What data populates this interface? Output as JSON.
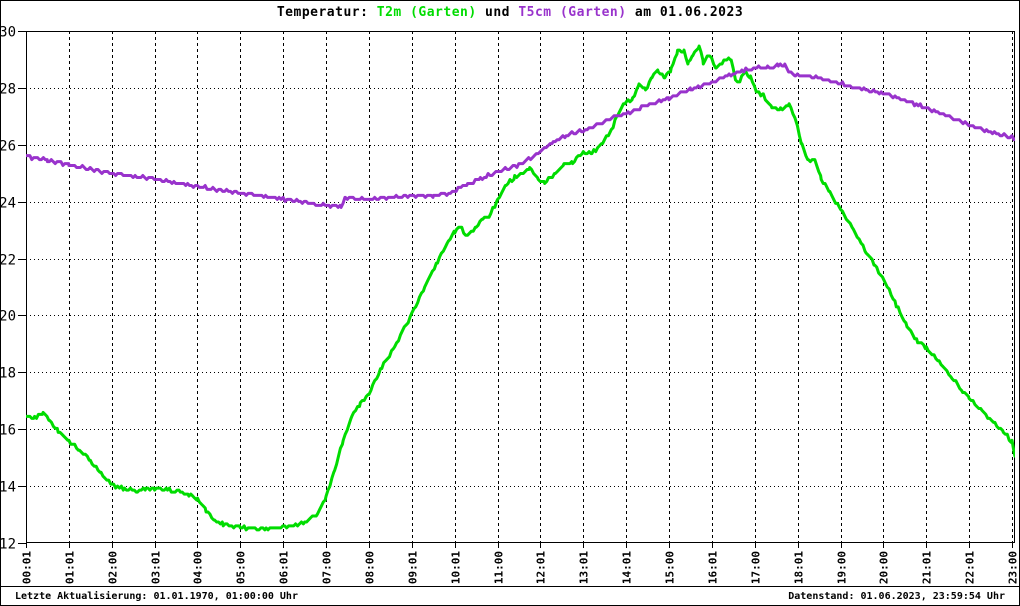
{
  "title": {
    "prefix": "Temperatur: ",
    "series1_label": "T2m (Garten)",
    "connector": " und ",
    "series2_label": "T5cm (Garten)",
    "suffix": " am 01.06.2023"
  },
  "statusbar": {
    "left": "Letzte Aktualisierung: 01.01.1970, 01:00:00 Uhr",
    "right": "Datenstand: 01.06.2023, 23:59:54 Uhr"
  },
  "colors": {
    "t2m": "#00DC00",
    "t5cm": "#9933CC",
    "grid": "#000000",
    "background": "#FFFFFF",
    "text": "#000000"
  },
  "chart_data": {
    "type": "line",
    "title": "Temperatur: T2m (Garten) und T5cm (Garten) am 01.06.2023",
    "xlabel": "",
    "ylabel": "",
    "x_unit": "hour_of_day",
    "y_unit": "degC",
    "ylim": [
      12,
      30
    ],
    "xlim_hours": [
      0,
      23.07
    ],
    "y_ticks": [
      12,
      14,
      16,
      18,
      20,
      22,
      24,
      26,
      28,
      30
    ],
    "x_tick_labels": [
      "00:01",
      "01:01",
      "02:00",
      "03:01",
      "04:00",
      "05:00",
      "06:01",
      "07:00",
      "08:00",
      "09:01",
      "10:01",
      "11:00",
      "12:01",
      "13:01",
      "14:01",
      "15:00",
      "16:01",
      "17:00",
      "18:01",
      "19:00",
      "20:00",
      "21:01",
      "22:01",
      "23:00"
    ],
    "grid": true,
    "legend_position": "in-title",
    "series": [
      {
        "name": "T2m (Garten)",
        "color": "#00DC00",
        "points": [
          [
            0.0,
            16.45
          ],
          [
            0.2,
            16.4
          ],
          [
            0.4,
            16.55
          ],
          [
            0.55,
            16.3
          ],
          [
            0.75,
            15.95
          ],
          [
            1.0,
            15.6
          ],
          [
            1.25,
            15.25
          ],
          [
            1.5,
            14.9
          ],
          [
            1.75,
            14.45
          ],
          [
            2.0,
            14.05
          ],
          [
            2.3,
            13.9
          ],
          [
            2.6,
            13.85
          ],
          [
            2.8,
            13.9
          ],
          [
            3.0,
            13.9
          ],
          [
            3.3,
            13.85
          ],
          [
            3.6,
            13.8
          ],
          [
            3.8,
            13.7
          ],
          [
            4.0,
            13.55
          ],
          [
            4.2,
            13.15
          ],
          [
            4.4,
            12.8
          ],
          [
            4.6,
            12.65
          ],
          [
            4.8,
            12.6
          ],
          [
            5.0,
            12.55
          ],
          [
            5.3,
            12.5
          ],
          [
            5.6,
            12.5
          ],
          [
            5.9,
            12.55
          ],
          [
            6.2,
            12.6
          ],
          [
            6.5,
            12.7
          ],
          [
            6.8,
            13.05
          ],
          [
            7.0,
            13.6
          ],
          [
            7.2,
            14.6
          ],
          [
            7.4,
            15.6
          ],
          [
            7.6,
            16.5
          ],
          [
            7.8,
            16.9
          ],
          [
            8.0,
            17.25
          ],
          [
            8.3,
            18.2
          ],
          [
            8.6,
            18.9
          ],
          [
            9.0,
            20.05
          ],
          [
            9.3,
            21.0
          ],
          [
            9.6,
            21.9
          ],
          [
            9.85,
            22.6
          ],
          [
            10.0,
            22.95
          ],
          [
            10.12,
            23.1
          ],
          [
            10.3,
            22.8
          ],
          [
            10.5,
            23.1
          ],
          [
            10.65,
            23.4
          ],
          [
            10.8,
            23.45
          ],
          [
            11.0,
            24.05
          ],
          [
            11.2,
            24.6
          ],
          [
            11.4,
            24.85
          ],
          [
            11.6,
            25.0
          ],
          [
            11.75,
            25.2
          ],
          [
            11.95,
            24.8
          ],
          [
            12.1,
            24.65
          ],
          [
            12.35,
            25.0
          ],
          [
            12.55,
            25.3
          ],
          [
            12.75,
            25.4
          ],
          [
            13.0,
            25.75
          ],
          [
            13.2,
            25.7
          ],
          [
            13.45,
            26.05
          ],
          [
            13.65,
            26.5
          ],
          [
            13.8,
            27.1
          ],
          [
            14.0,
            27.5
          ],
          [
            14.15,
            27.6
          ],
          [
            14.3,
            28.15
          ],
          [
            14.45,
            27.95
          ],
          [
            14.6,
            28.4
          ],
          [
            14.75,
            28.6
          ],
          [
            14.9,
            28.35
          ],
          [
            15.05,
            28.65
          ],
          [
            15.2,
            29.3
          ],
          [
            15.35,
            29.3
          ],
          [
            15.45,
            28.85
          ],
          [
            15.55,
            29.15
          ],
          [
            15.7,
            29.45
          ],
          [
            15.8,
            28.9
          ],
          [
            15.95,
            29.15
          ],
          [
            16.1,
            28.65
          ],
          [
            16.3,
            29.0
          ],
          [
            16.45,
            29.0
          ],
          [
            16.55,
            28.3
          ],
          [
            16.65,
            28.2
          ],
          [
            16.75,
            28.6
          ],
          [
            16.9,
            28.35
          ],
          [
            17.05,
            27.85
          ],
          [
            17.2,
            27.75
          ],
          [
            17.4,
            27.3
          ],
          [
            17.6,
            27.25
          ],
          [
            17.8,
            27.4
          ],
          [
            17.95,
            26.9
          ],
          [
            18.1,
            26.0
          ],
          [
            18.25,
            25.45
          ],
          [
            18.4,
            25.5
          ],
          [
            18.55,
            24.8
          ],
          [
            18.75,
            24.3
          ],
          [
            19.0,
            23.75
          ],
          [
            19.3,
            23.0
          ],
          [
            19.6,
            22.25
          ],
          [
            19.8,
            21.75
          ],
          [
            20.0,
            21.3
          ],
          [
            20.3,
            20.35
          ],
          [
            20.55,
            19.65
          ],
          [
            20.8,
            19.1
          ],
          [
            21.0,
            18.85
          ],
          [
            21.3,
            18.4
          ],
          [
            21.6,
            17.8
          ],
          [
            21.85,
            17.35
          ],
          [
            22.0,
            17.1
          ],
          [
            22.3,
            16.65
          ],
          [
            22.6,
            16.2
          ],
          [
            22.8,
            15.9
          ],
          [
            23.0,
            15.55
          ],
          [
            23.04,
            15.3
          ],
          [
            23.07,
            15.05
          ]
        ]
      },
      {
        "name": "T5cm (Garten)",
        "color": "#9933CC",
        "points": [
          [
            0.0,
            25.6
          ],
          [
            0.5,
            25.45
          ],
          [
            1.0,
            25.3
          ],
          [
            1.5,
            25.15
          ],
          [
            2.0,
            25.0
          ],
          [
            2.5,
            24.9
          ],
          [
            3.0,
            24.8
          ],
          [
            3.5,
            24.65
          ],
          [
            4.0,
            24.55
          ],
          [
            4.5,
            24.4
          ],
          [
            5.0,
            24.3
          ],
          [
            5.5,
            24.2
          ],
          [
            6.0,
            24.1
          ],
          [
            6.4,
            24.0
          ],
          [
            6.8,
            23.9
          ],
          [
            7.1,
            23.85
          ],
          [
            7.35,
            23.85
          ],
          [
            7.45,
            24.15
          ],
          [
            7.7,
            24.1
          ],
          [
            8.0,
            24.1
          ],
          [
            8.5,
            24.15
          ],
          [
            9.0,
            24.2
          ],
          [
            9.5,
            24.2
          ],
          [
            9.9,
            24.3
          ],
          [
            10.1,
            24.5
          ],
          [
            10.3,
            24.6
          ],
          [
            10.6,
            24.8
          ],
          [
            11.0,
            25.05
          ],
          [
            11.5,
            25.3
          ],
          [
            12.0,
            25.75
          ],
          [
            12.3,
            26.1
          ],
          [
            12.6,
            26.35
          ],
          [
            13.0,
            26.5
          ],
          [
            13.4,
            26.75
          ],
          [
            13.75,
            27.0
          ],
          [
            14.0,
            27.1
          ],
          [
            14.5,
            27.4
          ],
          [
            15.0,
            27.65
          ],
          [
            15.5,
            27.95
          ],
          [
            16.0,
            28.2
          ],
          [
            16.4,
            28.45
          ],
          [
            16.7,
            28.6
          ],
          [
            17.0,
            28.7
          ],
          [
            17.3,
            28.72
          ],
          [
            17.55,
            28.78
          ],
          [
            17.7,
            28.8
          ],
          [
            17.8,
            28.55
          ],
          [
            17.95,
            28.45
          ],
          [
            18.2,
            28.42
          ],
          [
            18.5,
            28.35
          ],
          [
            19.0,
            28.15
          ],
          [
            19.5,
            27.95
          ],
          [
            20.0,
            27.8
          ],
          [
            20.5,
            27.55
          ],
          [
            21.0,
            27.3
          ],
          [
            21.5,
            27.0
          ],
          [
            22.0,
            26.7
          ],
          [
            22.5,
            26.45
          ],
          [
            23.0,
            26.25
          ],
          [
            23.07,
            26.2
          ]
        ]
      }
    ],
    "render_hints": {
      "line_width": 3,
      "quantize_step_c": 0.07,
      "noise_amp_c": {
        "t2m": 0.06,
        "t5cm": 0.05
      },
      "sample_hours": 0.045,
      "h_grid_style": "dotted",
      "v_grid_style": "dashed"
    }
  }
}
